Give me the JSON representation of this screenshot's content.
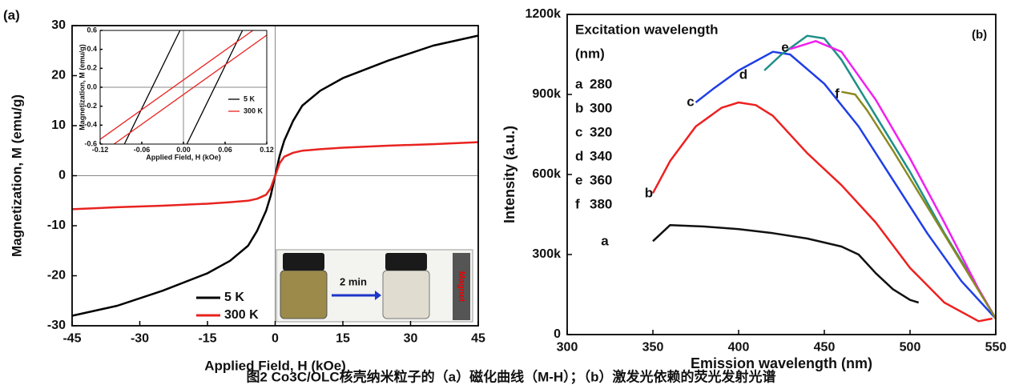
{
  "caption": "图2 Co3C/OLC核壳纳米粒子的（a）磁化曲线（M-H）；（b）激发光依赖的荧光发射光谱",
  "chart_data": [
    {
      "type": "line",
      "panel": "(a)",
      "xlabel": "Applied Field, H (kOe)",
      "ylabel": "Magnetization, M (emu/g)",
      "xlim": [
        -45,
        45
      ],
      "ylim": [
        -30,
        30
      ],
      "xticks": [
        -45,
        -30,
        -15,
        0,
        15,
        30,
        45
      ],
      "yticks": [
        -30,
        -20,
        -10,
        0,
        10,
        20,
        30
      ],
      "zero_lines": true,
      "legend": "lower center",
      "annotations": [
        "2 min",
        "Magnet"
      ],
      "x": [
        -45,
        -35,
        -25,
        -15,
        -10,
        -6,
        -4,
        -2,
        -1,
        0,
        1,
        2,
        4,
        6,
        10,
        15,
        25,
        35,
        45
      ],
      "series": [
        {
          "name": "5 K",
          "color": "#000000",
          "values": [
            -28,
            -26,
            -23,
            -19.5,
            -17,
            -14,
            -11,
            -7,
            -4,
            0,
            4,
            7,
            11,
            14,
            17,
            19.5,
            23,
            26,
            28
          ]
        },
        {
          "name": "300 K",
          "color": "#e8231f",
          "values": [
            -6.7,
            -6.3,
            -6,
            -5.6,
            -5.3,
            -5,
            -4.6,
            -3.8,
            -2.5,
            0,
            2.5,
            3.8,
            4.6,
            5,
            5.3,
            5.6,
            6,
            6.3,
            6.7
          ]
        }
      ]
    },
    {
      "type": "line",
      "xlabel": "Applied Field, H (kOe)",
      "ylabel": "Magnetization, M (emu/g)",
      "xlim": [
        -0.12,
        0.12
      ],
      "ylim": [
        -0.6,
        0.6
      ],
      "xticks": [
        -0.12,
        -0.06,
        {
          "value": 0,
          "label": "0.00"
        },
        0.06,
        0.12
      ],
      "yticks": [
        -0.6,
        -0.4,
        -0.2,
        {
          "value": 0,
          "label": "0.0"
        },
        0.2,
        0.4,
        0.6
      ],
      "zero_lines": true,
      "legend": "lower right",
      "series": [
        {
          "name": "5 K",
          "color": "#000000",
          "x": [
            -0.085,
            -0.005,
            null,
            0.005,
            0.085
          ],
          "values": [
            -0.6,
            0.6,
            null,
            -0.6,
            0.6
          ]
        },
        {
          "name": "300 K",
          "color": "#e8231f",
          "x": [
            -0.12,
            0.1,
            null,
            -0.1,
            0.12
          ],
          "values": [
            -0.55,
            0.6,
            null,
            -0.6,
            0.55
          ]
        }
      ]
    },
    {
      "type": "line",
      "panel": "(b)",
      "xlabel": "Emission wavelength (nm)",
      "ylabel": "Intensity (a.u.)",
      "xlim": [
        300,
        550
      ],
      "ylim": [
        0,
        1200000
      ],
      "xticks": [
        300,
        350,
        400,
        450,
        500,
        550
      ],
      "yticks": [
        {
          "value": 0,
          "label": "0"
        },
        {
          "value": 300000,
          "label": "300k"
        },
        {
          "value": 600000,
          "label": "600k"
        },
        {
          "value": 900000,
          "label": "900k"
        },
        {
          "value": 1200000,
          "label": "1200k"
        }
      ],
      "zero_lines": false,
      "legend": "upper left",
      "legend_title": "Excitation wavelength",
      "legend_unit": "(nm)",
      "series": [
        {
          "name": "a",
          "excitation": 280,
          "color": "#111111",
          "x": [
            350,
            360,
            380,
            400,
            420,
            440,
            460,
            470,
            480,
            490,
            500,
            505
          ],
          "values": [
            350000,
            410000,
            405000,
            395000,
            380000,
            360000,
            330000,
            300000,
            230000,
            170000,
            130000,
            120000
          ]
        },
        {
          "name": "b",
          "excitation": 300,
          "color": "#ee2020",
          "x": [
            350,
            360,
            375,
            390,
            400,
            410,
            420,
            440,
            460,
            480,
            500,
            520,
            540,
            548
          ],
          "values": [
            530000,
            650000,
            780000,
            850000,
            870000,
            860000,
            820000,
            680000,
            560000,
            420000,
            250000,
            120000,
            50000,
            60000
          ]
        },
        {
          "name": "c",
          "excitation": 320,
          "color": "#1f3ee6",
          "x": [
            375,
            385,
            400,
            420,
            430,
            450,
            470,
            490,
            510,
            530,
            550
          ],
          "values": [
            870000,
            920000,
            990000,
            1060000,
            1050000,
            940000,
            780000,
            580000,
            380000,
            200000,
            60000
          ]
        },
        {
          "name": "d",
          "excitation": 340,
          "color": "#1f8f88",
          "x": [
            415,
            425,
            440,
            450,
            460,
            480,
            500,
            520,
            540,
            550
          ],
          "values": [
            990000,
            1050000,
            1120000,
            1110000,
            1030000,
            820000,
            610000,
            380000,
            170000,
            60000
          ]
        },
        {
          "name": "e",
          "excitation": 360,
          "color": "#f020f0",
          "x": [
            430,
            445,
            460,
            480,
            500,
            520,
            540,
            550
          ],
          "values": [
            1070000,
            1100000,
            1060000,
            880000,
            660000,
            420000,
            170000,
            60000
          ]
        },
        {
          "name": "f",
          "excitation": 380,
          "color": "#8a8a20",
          "x": [
            460,
            468,
            475,
            490,
            510,
            530,
            550
          ],
          "values": [
            910000,
            900000,
            840000,
            690000,
            480000,
            270000,
            60000
          ]
        }
      ]
    }
  ]
}
